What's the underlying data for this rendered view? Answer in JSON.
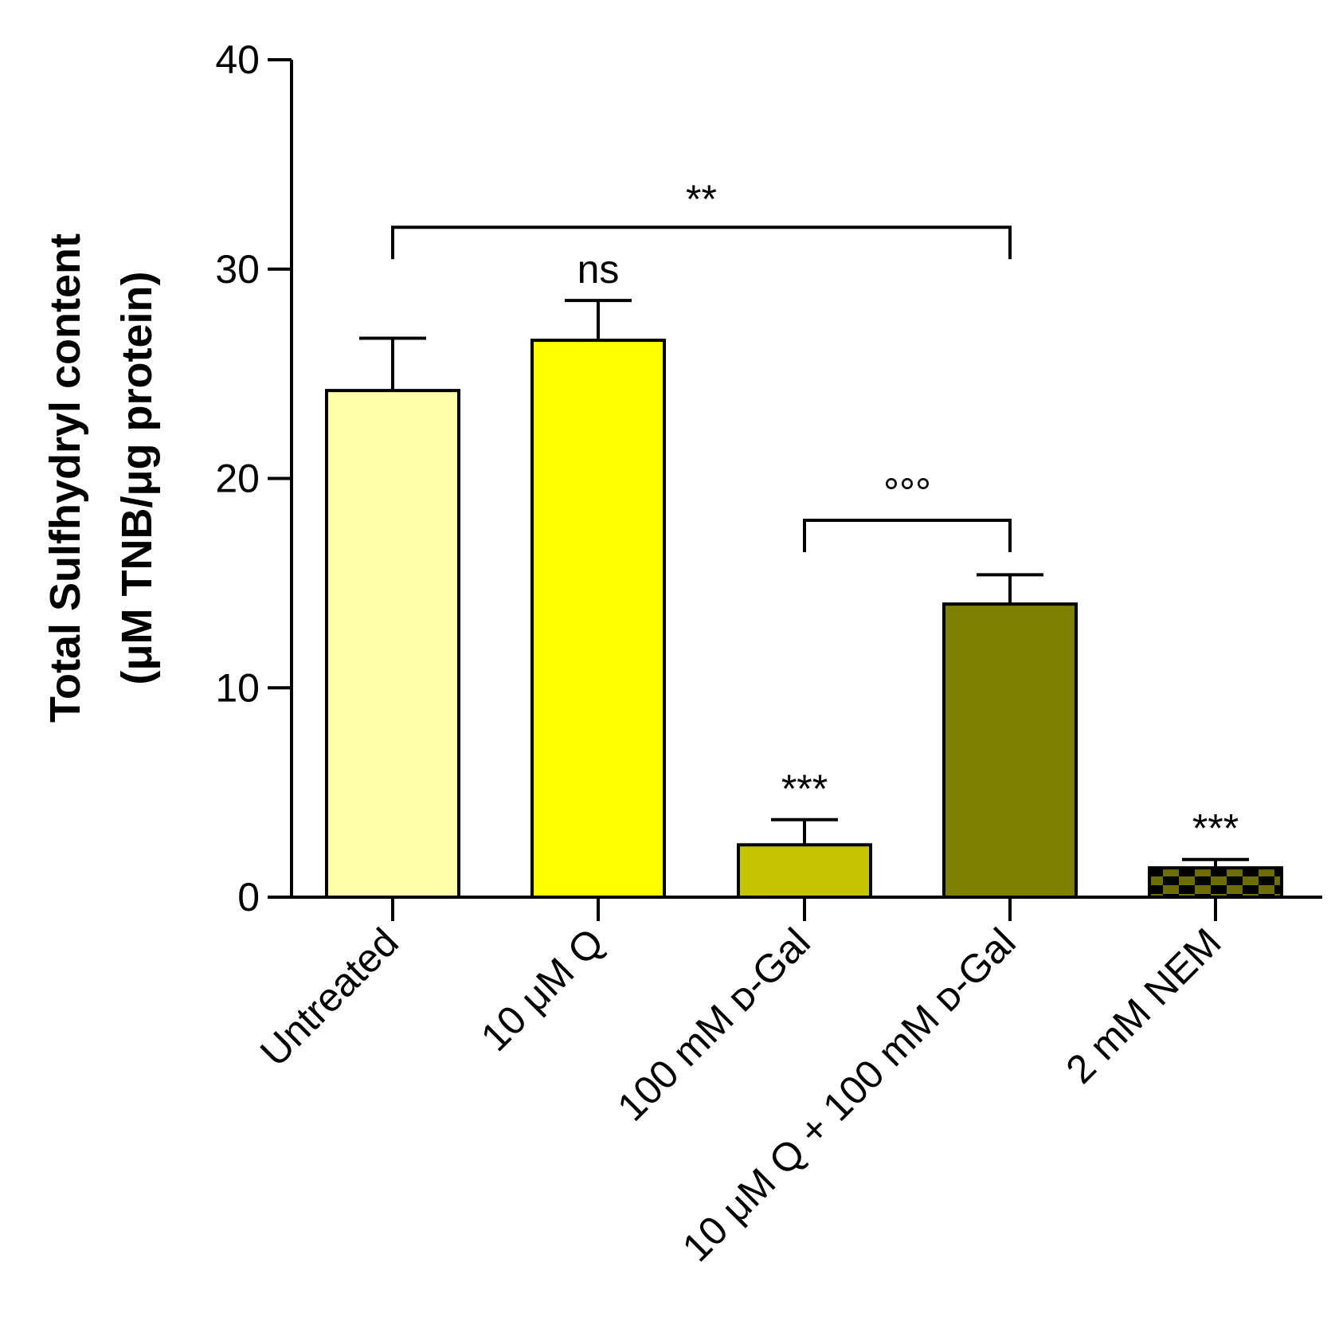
{
  "chart_data": {
    "type": "bar",
    "ylabel_line1": "Total Sulfhydryl content",
    "ylabel_line2": "(μM TNB/μg protein)",
    "ylim": [
      0,
      40
    ],
    "yticks": [
      "0",
      "10",
      "20",
      "30",
      "40"
    ],
    "categories": [
      "Untreated",
      "10 μM Q",
      "100 mM ᴅ-Gal",
      "10 μM Q + 100 mM ᴅ-Gal",
      "2 mM NEM"
    ],
    "values": [
      24.2,
      26.6,
      2.5,
      14.0,
      1.4
    ],
    "errors": [
      2.5,
      1.9,
      1.2,
      1.4,
      0.4
    ],
    "colors": [
      "#ffffaa",
      "#ffff00",
      "#c4c400",
      "#7f7f00",
      "#6e6e00"
    ],
    "patterns": [
      "solid",
      "solid",
      "solid",
      "solid",
      "checker"
    ],
    "annotations": [
      {
        "text": "ns",
        "bar_index": 1
      },
      {
        "text": "***",
        "bar_index": 2
      },
      {
        "text": "***",
        "bar_index": 4
      }
    ],
    "brackets": [
      {
        "text": "**",
        "from": 0,
        "to": 3,
        "y": 32
      },
      {
        "text": "°°°",
        "from": 2,
        "to": 3,
        "y": 18
      }
    ]
  }
}
